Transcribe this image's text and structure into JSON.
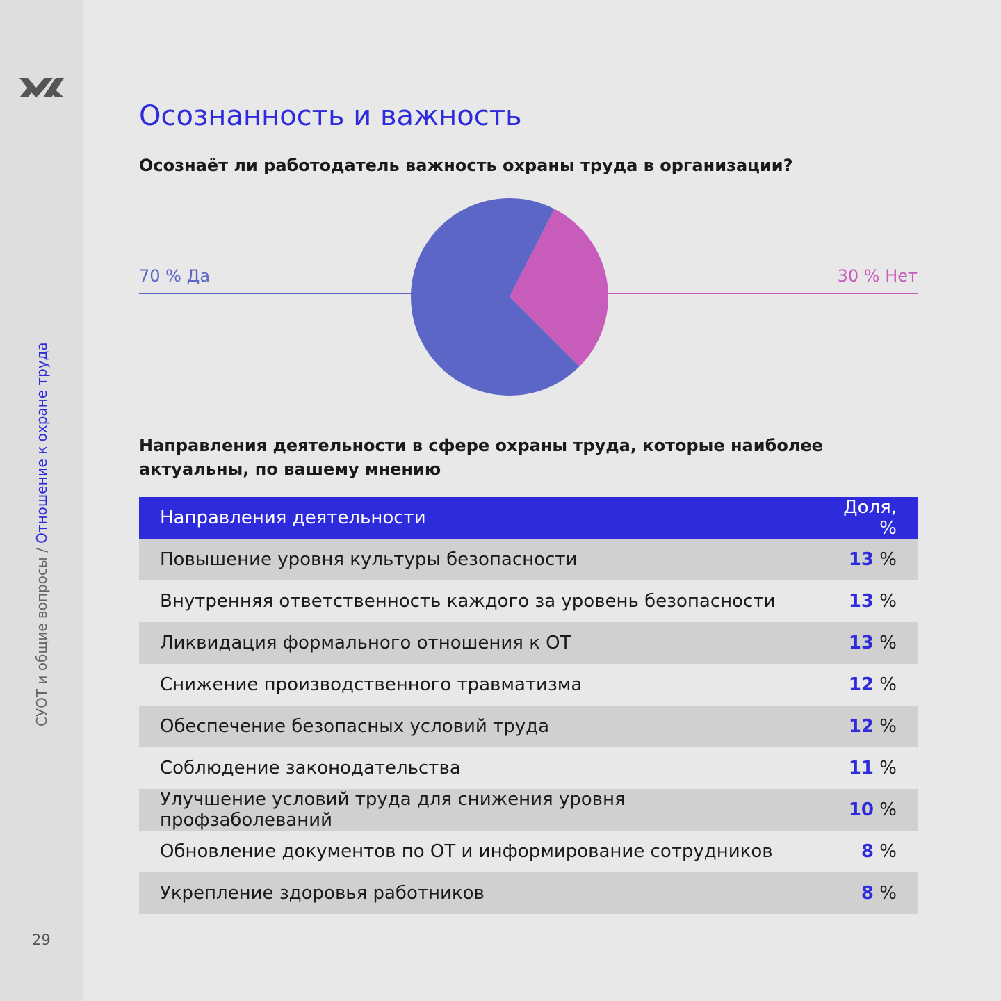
{
  "sidebar": {
    "section": "СУОТ и общие вопросы / ",
    "subsection": "Отношение к охране труда",
    "page_number": "29"
  },
  "title": "Осознанность и важность",
  "question1": "Осознаёт ли работодатель важность охраны труда в организации?",
  "question2": "Направления деятельности в сфере охраны труда, которые наиболее актуальны, по вашему мнению",
  "colors": {
    "accent": "#2e2bdc",
    "yes": "#5c66c7",
    "no": "#c75cba"
  },
  "chart_data": [
    {
      "type": "pie",
      "slices": [
        {
          "label": "Да",
          "value": 70,
          "display": "70 % Да",
          "color": "#5c66c7"
        },
        {
          "label": "Нет",
          "value": 30,
          "display": "30 % Нет",
          "color": "#c75cba"
        }
      ]
    },
    {
      "type": "table",
      "columns": [
        "Направления деятельности",
        "Доля, %"
      ],
      "rows": [
        {
          "name": "Повышение уровня культуры безопасности",
          "value": "13",
          "unit": " %"
        },
        {
          "name": "Внутренняя ответственность каждого за уровень безопасности",
          "value": "13",
          "unit": " %"
        },
        {
          "name": "Ликвидация формального отношения к ОТ",
          "value": "13",
          "unit": " %"
        },
        {
          "name": "Снижение производственного травматизма",
          "value": "12",
          "unit": " %"
        },
        {
          "name": "Обеспечение безопасных условий труда",
          "value": "12",
          "unit": " %"
        },
        {
          "name": "Соблюдение законодательства",
          "value": "11",
          "unit": " %"
        },
        {
          "name": "Улучшение условий труда для снижения уровня профзаболеваний",
          "value": "10",
          "unit": " %"
        },
        {
          "name": "Обновление документов по ОТ и информирование сотрудников",
          "value": "8",
          "unit": " %"
        },
        {
          "name": "Укрепление здоровья работников",
          "value": "8",
          "unit": " %"
        }
      ]
    }
  ]
}
